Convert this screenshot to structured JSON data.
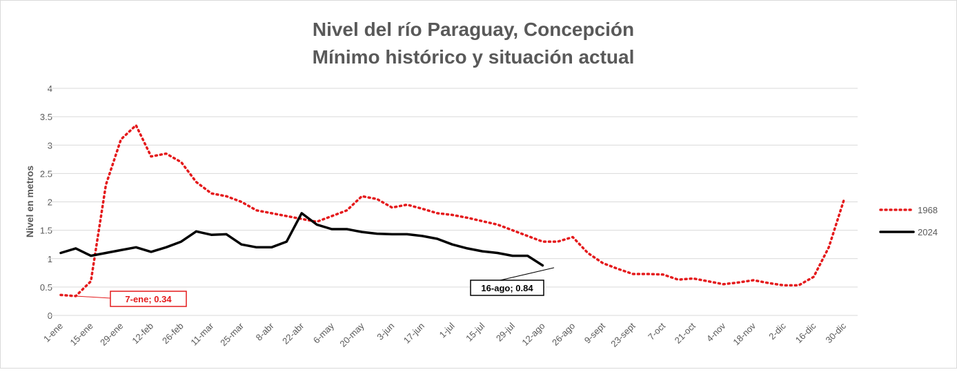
{
  "chart_data": {
    "type": "line",
    "title": [
      "Nivel del río Paraguay, Concepción",
      "Mínimo histórico y situación actual"
    ],
    "y_label": "Nivel en metros",
    "categories": [
      "1-ene",
      null,
      "15-ene",
      null,
      "29-ene",
      null,
      "12-feb",
      null,
      "26-feb",
      null,
      "11-mar",
      null,
      "25-mar",
      null,
      "8-abr",
      null,
      "22-abr",
      null,
      "6-may",
      null,
      "20-may",
      null,
      "3-jun",
      null,
      "17-jun",
      null,
      "1-jul",
      null,
      "15-jul",
      null,
      "29-jul",
      null,
      "12-ago",
      null,
      "26-ago",
      null,
      "9-sept",
      null,
      "23-sept",
      null,
      "7-oct",
      null,
      "21-oct",
      null,
      "4-nov",
      null,
      "18-nov",
      null,
      "2-dic",
      null,
      "16-dic",
      null,
      "30-dic"
    ],
    "series": [
      {
        "name": "1968",
        "color": "#e41a1c",
        "dash": true,
        "values": [
          0.36,
          0.34,
          0.6,
          2.3,
          3.1,
          3.35,
          2.8,
          2.85,
          2.7,
          2.35,
          2.15,
          2.1,
          2.0,
          1.85,
          1.8,
          1.75,
          1.7,
          1.65,
          1.75,
          1.85,
          2.1,
          2.05,
          1.9,
          1.95,
          1.88,
          1.8,
          1.77,
          1.72,
          1.66,
          1.6,
          1.5,
          1.4,
          1.3,
          1.3,
          1.38,
          1.1,
          0.92,
          0.82,
          0.73,
          0.73,
          0.72,
          0.63,
          0.65,
          0.6,
          0.55,
          0.58,
          0.62,
          0.57,
          0.53,
          0.53,
          0.68,
          1.2,
          2.03
        ]
      },
      {
        "name": "2024",
        "color": "#000000",
        "dash": false,
        "values": [
          1.1,
          1.18,
          1.05,
          1.1,
          1.15,
          1.2,
          1.12,
          1.2,
          1.3,
          1.48,
          1.42,
          1.43,
          1.25,
          1.2,
          1.2,
          1.3,
          1.8,
          1.6,
          1.52,
          1.52,
          1.47,
          1.44,
          1.43,
          1.43,
          1.4,
          1.35,
          1.25,
          1.18,
          1.13,
          1.1,
          1.05,
          1.05,
          0.88,
          null,
          null,
          null,
          null,
          null,
          null,
          null,
          null,
          null,
          null,
          null,
          null,
          null,
          null,
          null,
          null,
          null,
          null,
          null,
          null
        ]
      }
    ],
    "annotations": [
      "7-ene; 0.34",
      "16-ago; 0.84"
    ],
    "ylim": [
      0,
      4
    ],
    "yticks": [
      0,
      0.5,
      1,
      1.5,
      2,
      2.5,
      3,
      3.5,
      4
    ],
    "grid": true,
    "legend": "right"
  }
}
